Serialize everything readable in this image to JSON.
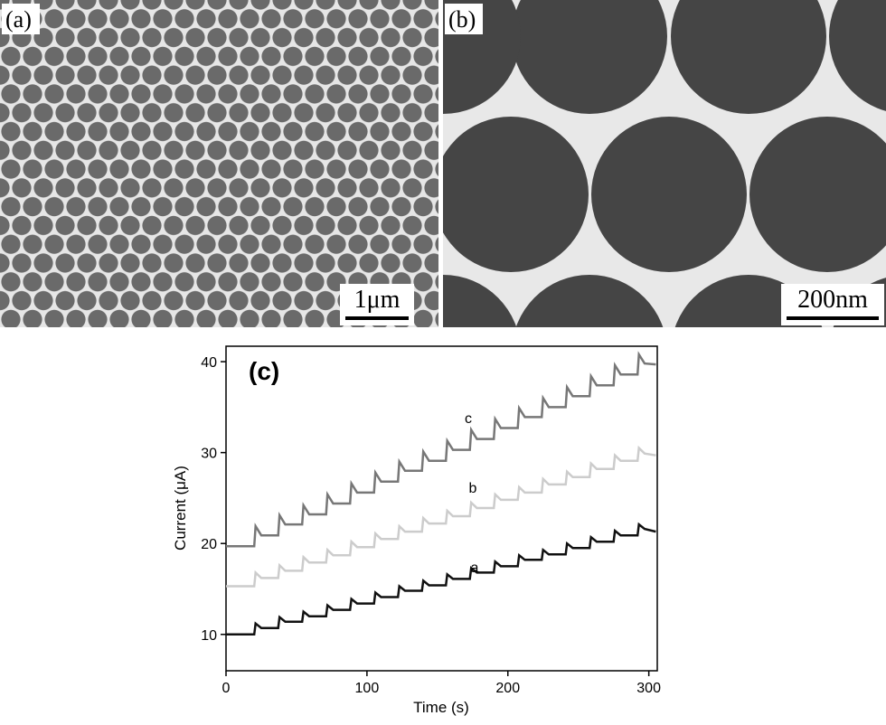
{
  "panel_a": {
    "label": "(a)",
    "scale_bar": "1μm"
  },
  "panel_b": {
    "label": "(b)",
    "scale_bar": "200nm"
  },
  "chart_data": {
    "type": "line",
    "title": "(c)",
    "x_label": "Time (s)",
    "y_label": "Current (μA)",
    "x": [
      0,
      20,
      21,
      25,
      37,
      38,
      42,
      54,
      55,
      59,
      71,
      72,
      76,
      88,
      89,
      93,
      105,
      106,
      110,
      122,
      123,
      127,
      139,
      140,
      144,
      156,
      157,
      161,
      173,
      174,
      178,
      190,
      191,
      195,
      207,
      208,
      212,
      224,
      225,
      229,
      241,
      242,
      246,
      258,
      259,
      263,
      275,
      276,
      280,
      292,
      293,
      297,
      305
    ],
    "series": [
      {
        "name": "a",
        "color": "#111111",
        "values": [
          10,
          10,
          11.2,
          10.7,
          10.7,
          11.9,
          11.4,
          11.4,
          12.5,
          12.0,
          12.0,
          13.2,
          12.7,
          12.7,
          13.9,
          13.4,
          13.4,
          14.6,
          14.1,
          14.1,
          15.3,
          14.8,
          14.8,
          15.9,
          15.4,
          15.4,
          16.6,
          16.1,
          16.1,
          17.3,
          16.8,
          16.8,
          18.0,
          17.5,
          17.5,
          18.7,
          18.2,
          18.2,
          19.3,
          18.8,
          18.8,
          20.0,
          19.5,
          19.5,
          20.7,
          20.2,
          20.2,
          21.4,
          20.9,
          20.9,
          22.1,
          21.6,
          21.3
        ]
      },
      {
        "name": "b",
        "color": "#cccccc",
        "values": [
          15.3,
          15.3,
          16.8,
          16.2,
          16.2,
          17.6,
          17.0,
          17.0,
          18.5,
          17.9,
          17.9,
          19.3,
          18.7,
          18.7,
          20.2,
          19.6,
          19.6,
          21.1,
          20.5,
          20.5,
          21.9,
          21.3,
          21.3,
          22.8,
          22.2,
          22.2,
          23.6,
          23.0,
          23.0,
          24.5,
          23.9,
          23.9,
          25.4,
          24.8,
          24.8,
          26.2,
          25.6,
          25.6,
          27.1,
          26.5,
          26.5,
          27.9,
          27.3,
          27.3,
          28.8,
          28.2,
          28.2,
          29.7,
          29.1,
          29.1,
          30.5,
          29.9,
          29.7
        ]
      },
      {
        "name": "c",
        "color": "#777777",
        "values": [
          19.7,
          19.7,
          21.9,
          20.9,
          20.9,
          23.1,
          22.1,
          22.1,
          24.2,
          23.2,
          23.2,
          25.4,
          24.4,
          24.4,
          26.6,
          25.6,
          25.6,
          27.8,
          26.8,
          26.8,
          29.0,
          28.0,
          28.0,
          30.1,
          29.1,
          29.1,
          31.3,
          30.3,
          30.3,
          32.5,
          31.5,
          31.5,
          33.7,
          32.7,
          32.7,
          34.9,
          33.9,
          33.9,
          36.0,
          35.0,
          35.0,
          37.2,
          36.2,
          36.2,
          38.4,
          37.4,
          37.4,
          39.6,
          38.6,
          38.6,
          40.8,
          39.8,
          39.7
        ]
      }
    ],
    "xlim": [
      0,
      306
    ],
    "xticks": [
      0,
      100,
      200,
      300
    ],
    "ylim": [
      6,
      41.7
    ],
    "yticks": [
      10,
      20,
      30,
      40
    ]
  }
}
